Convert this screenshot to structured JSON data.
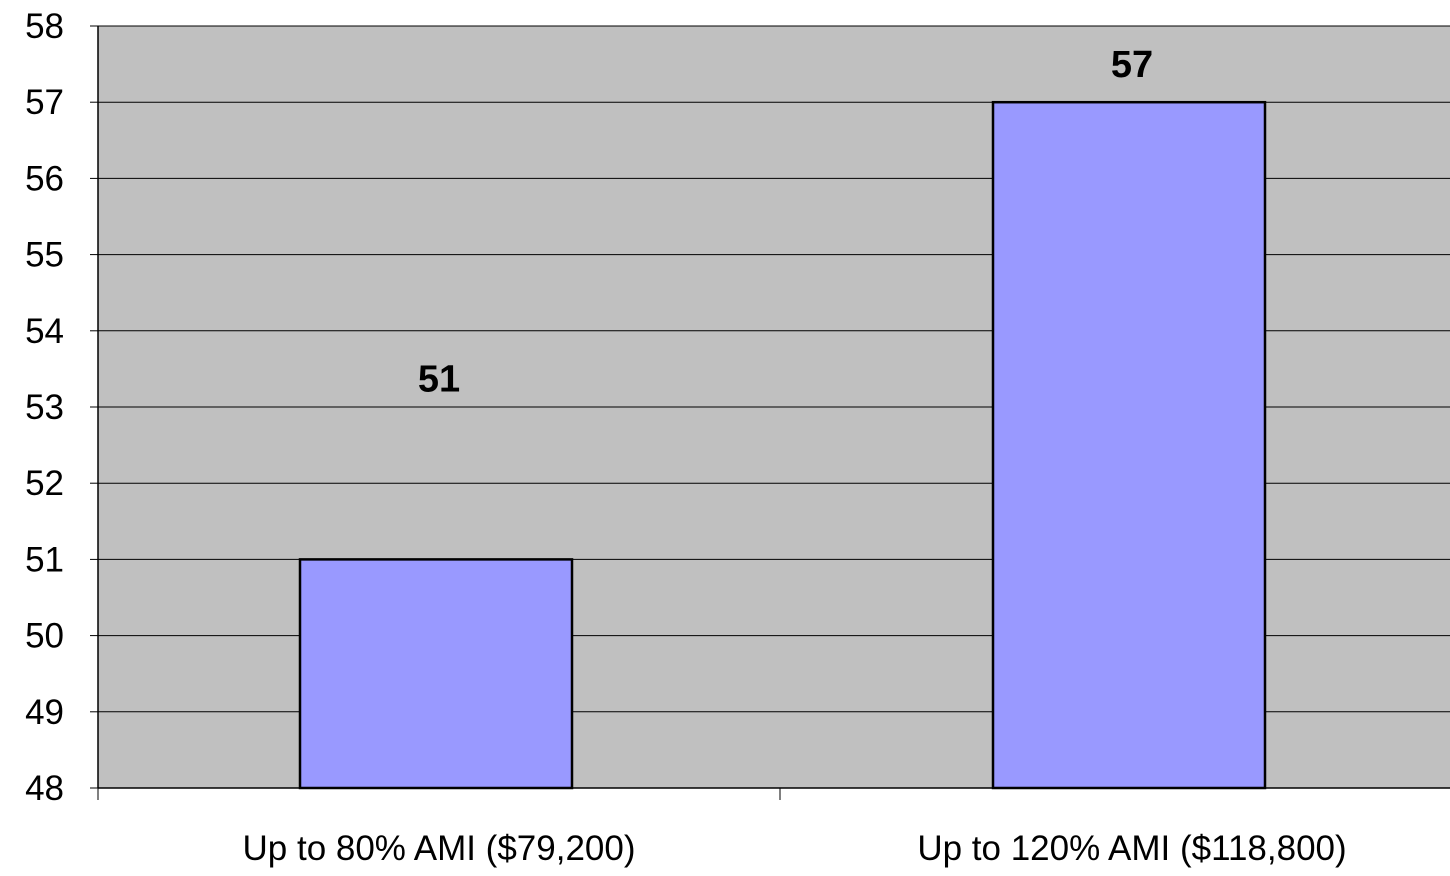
{
  "chart_data": {
    "type": "bar",
    "categories": [
      "Up to 80% AMI ($79,200)",
      "Up to 120% AMI ($118,800)"
    ],
    "values": [
      51,
      57
    ],
    "data_labels": [
      "51",
      "57"
    ],
    "ylim": [
      48,
      58
    ],
    "yticks": [
      48,
      49,
      50,
      51,
      52,
      53,
      54,
      55,
      56,
      57,
      58
    ],
    "grid": true,
    "legend": "none",
    "colors": {
      "plot_background": "#c0c0c0",
      "bar_fill": "#9999ff",
      "bar_stroke": "#000000",
      "gridline": "#000000"
    }
  }
}
